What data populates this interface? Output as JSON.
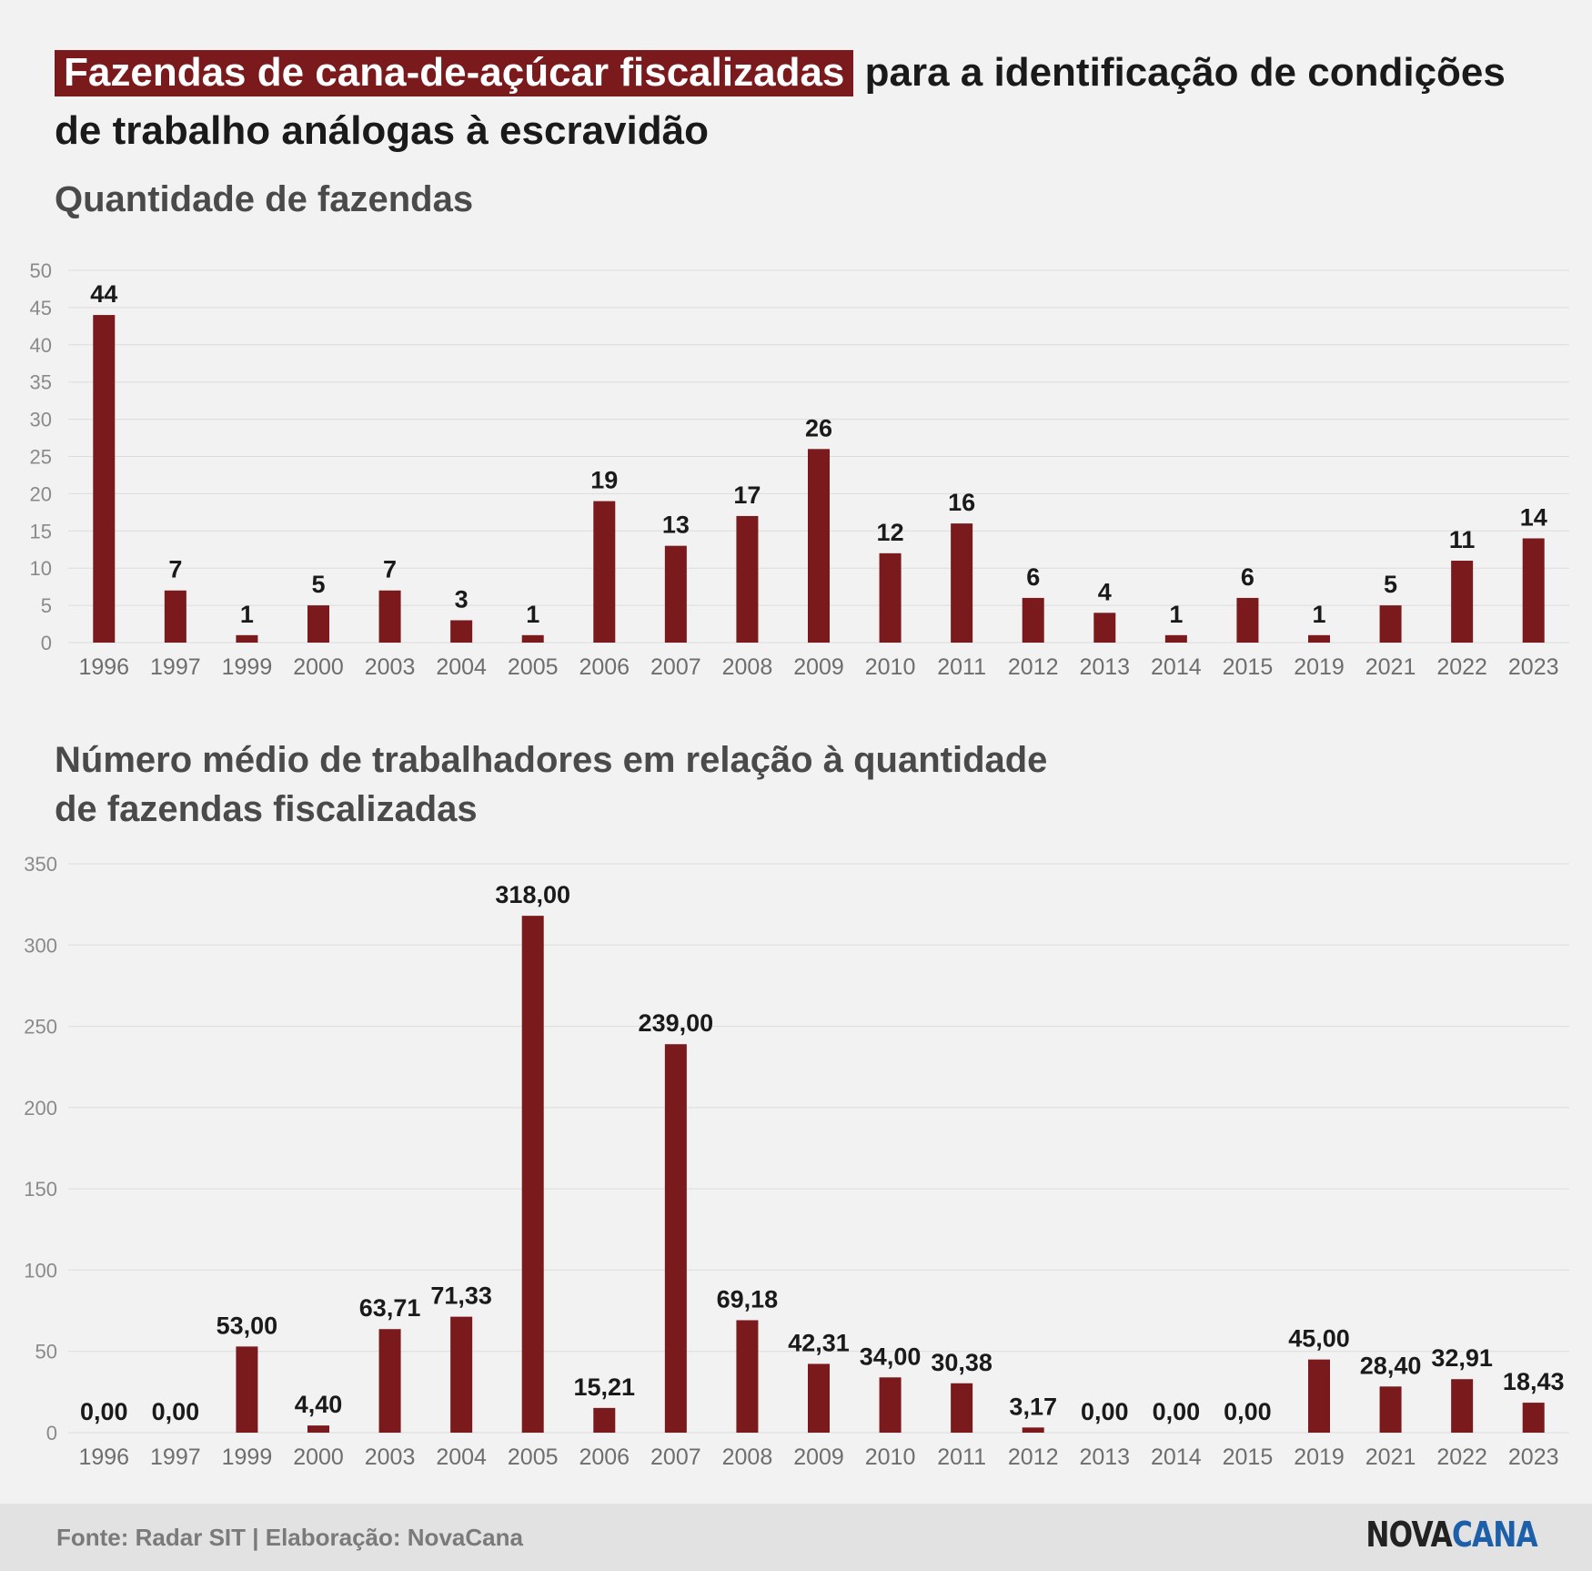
{
  "header": {
    "title_highlight": "Fazendas de cana-de-açúcar fiscalizadas",
    "title_rest": "para a identificação de condições de trabalho análogas à escravidão"
  },
  "colors": {
    "bar": "#7b1a1c",
    "grid": "#dcdcdc",
    "axis_text": "#8a8a8a",
    "label": "#1a1a1a"
  },
  "chart_data": [
    {
      "type": "bar",
      "title": "Quantidade de fazendas",
      "categories": [
        "1996",
        "1997",
        "1999",
        "2000",
        "2003",
        "2004",
        "2005",
        "2006",
        "2007",
        "2008",
        "2009",
        "2010",
        "2011",
        "2012",
        "2013",
        "2014",
        "2015",
        "2019",
        "2021",
        "2022",
        "2023"
      ],
      "values": [
        44,
        7,
        1,
        5,
        7,
        3,
        1,
        19,
        13,
        17,
        26,
        12,
        16,
        6,
        4,
        1,
        6,
        1,
        5,
        11,
        14
      ],
      "data_labels": [
        "44",
        "7",
        "1",
        "5",
        "7",
        "3",
        "1",
        "19",
        "13",
        "17",
        "26",
        "12",
        "16",
        "6",
        "4",
        "1",
        "6",
        "1",
        "5",
        "11",
        "14"
      ],
      "yticks": [
        "0",
        "5",
        "10",
        "15",
        "20",
        "25",
        "30",
        "35",
        "40",
        "45",
        "50"
      ],
      "ylim": [
        0,
        50
      ],
      "grid": true
    },
    {
      "type": "bar",
      "title": "Número médio de trabalhadores em relação à quantidade de fazendas fiscalizadas",
      "categories": [
        "1996",
        "1997",
        "1999",
        "2000",
        "2003",
        "2004",
        "2005",
        "2006",
        "2007",
        "2008",
        "2009",
        "2010",
        "2011",
        "2012",
        "2013",
        "2014",
        "2015",
        "2019",
        "2021",
        "2022",
        "2023"
      ],
      "values": [
        0,
        0,
        53,
        4.4,
        63.71,
        71.33,
        318,
        15.21,
        239,
        69.18,
        42.31,
        34,
        30.38,
        3.17,
        0,
        0,
        0,
        45,
        28.4,
        32.91,
        18.43
      ],
      "data_labels": [
        "0,00",
        "0,00",
        "53,00",
        "4,40",
        "63,71",
        "71,33",
        "318,00",
        "15,21",
        "239,00",
        "69,18",
        "42,31",
        "34,00",
        "30,38",
        "3,17",
        "0,00",
        "0,00",
        "0,00",
        "45,00",
        "28,40",
        "32,91",
        "18,43"
      ],
      "yticks": [
        "0",
        "50",
        "100",
        "150",
        "200",
        "250",
        "300",
        "350"
      ],
      "ylim": [
        0,
        350
      ],
      "grid": true
    }
  ],
  "footer": {
    "source": "Fonte: Radar SIT | Elaboração: NovaCana",
    "logo_part1": "NOVA",
    "logo_part2": "CANA"
  }
}
